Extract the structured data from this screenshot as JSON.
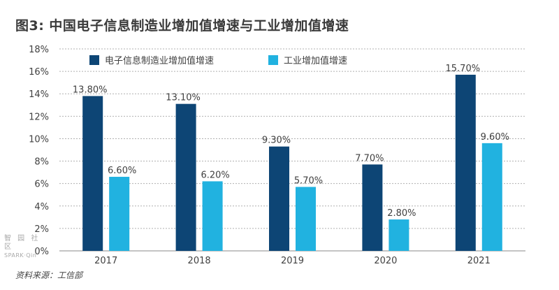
{
  "chart_data": {
    "type": "bar",
    "title": "图3: 中国电子信息制造业增加值增速与工业增加值增速",
    "categories": [
      "2017",
      "2018",
      "2019",
      "2020",
      "2021"
    ],
    "series": [
      {
        "name": "电子信息制造业增加值增速",
        "values": [
          13.8,
          13.1,
          9.3,
          7.7,
          15.7
        ],
        "labels": [
          "13.80%",
          "13.10%",
          "9.30%",
          "7.70%",
          "15.70%"
        ],
        "color": "#0d4575"
      },
      {
        "name": "工业增加值增速",
        "values": [
          6.6,
          6.2,
          5.7,
          2.8,
          9.6
        ],
        "labels": [
          "6.60%",
          "6.20%",
          "5.70%",
          "2.80%",
          "9.60%"
        ],
        "color": "#21b2e0"
      }
    ],
    "yticks": [
      "0%",
      "2%",
      "4%",
      "6%",
      "8%",
      "10%",
      "12%",
      "14%",
      "16%",
      "18%"
    ],
    "ylim": [
      0,
      18
    ],
    "grid": true,
    "legend_position": "top"
  },
  "source": "资料来源：工信部",
  "watermark": {
    "line1": "智 园 社 区",
    "line2": "SPARK·Qin"
  }
}
